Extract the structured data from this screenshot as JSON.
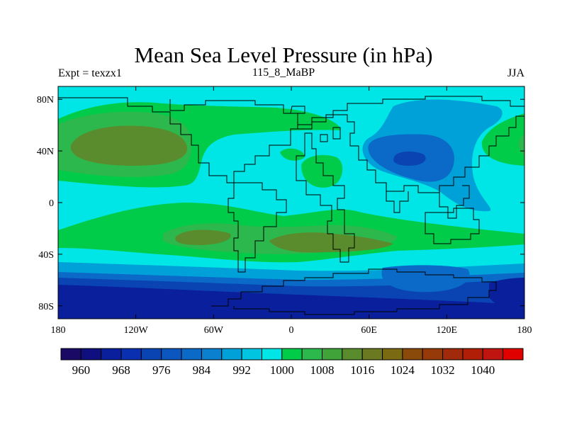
{
  "title": "Mean Sea Level Pressure (in hPa)",
  "subtitle_left": "Expt = texzx1",
  "subtitle_center": "115_8_MaBP",
  "subtitle_right": "JJA",
  "map": {
    "lon_range": [
      -180,
      180
    ],
    "lat_range": [
      -90,
      90
    ],
    "lon_ticks": [
      {
        "v": -180,
        "label": "180"
      },
      {
        "v": -120,
        "label": "120W"
      },
      {
        "v": -60,
        "label": "60W"
      },
      {
        "v": 0,
        "label": "0"
      },
      {
        "v": 60,
        "label": "60E"
      },
      {
        "v": 120,
        "label": "120E"
      },
      {
        "v": 180,
        "label": "180"
      }
    ],
    "lat_ticks": [
      {
        "v": 80,
        "label": "80N"
      },
      {
        "v": 40,
        "label": "40N"
      },
      {
        "v": 0,
        "label": "0"
      },
      {
        "v": -40,
        "label": "40S"
      },
      {
        "v": -80,
        "label": "80S"
      }
    ],
    "colors": {
      "c992": "#00e5e5",
      "c1000": "#00cc4a",
      "c1008": "#2db84d",
      "c1016": "#5a8c2e",
      "c984": "#00a0d8",
      "c976": "#0b6ac7",
      "c968": "#0a44b3",
      "c960": "#0a1f9c"
    }
  },
  "colorbar": {
    "colors": [
      "#1a0a66",
      "#0f0f80",
      "#0a1f9c",
      "#0a2fb0",
      "#0a44b3",
      "#0b57bf",
      "#0b6ac7",
      "#0a80cf",
      "#00a0d8",
      "#00c5e0",
      "#00e5e5",
      "#00cc4a",
      "#2db84d",
      "#40a33a",
      "#5a8c2e",
      "#6b7a20",
      "#7a6a12",
      "#8a4a0a",
      "#963a0a",
      "#a02a0a",
      "#b01e08",
      "#c01410",
      "#e00000"
    ],
    "labels": [
      {
        "after": 1,
        "text": "960"
      },
      {
        "after": 3,
        "text": "968"
      },
      {
        "after": 5,
        "text": "976"
      },
      {
        "after": 7,
        "text": "984"
      },
      {
        "after": 9,
        "text": "992"
      },
      {
        "after": 11,
        "text": "1000"
      },
      {
        "after": 13,
        "text": "1008"
      },
      {
        "after": 15,
        "text": "1016"
      },
      {
        "after": 17,
        "text": "1024"
      },
      {
        "after": 19,
        "text": "1032"
      },
      {
        "after": 21,
        "text": "1040"
      }
    ]
  }
}
